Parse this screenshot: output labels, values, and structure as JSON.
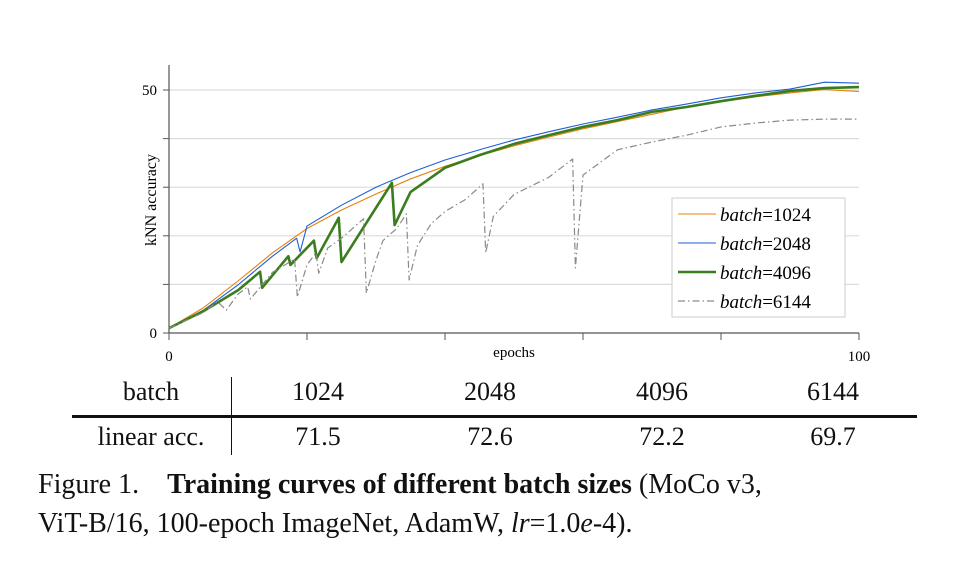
{
  "chart_data": {
    "type": "line",
    "xlabel": "epochs",
    "ylabel": "kNN accuracy",
    "xlim": [
      0,
      100
    ],
    "ylim": [
      0,
      55
    ],
    "x_tick_labels": [
      "0",
      "100"
    ],
    "x_ticks": [
      0,
      20,
      40,
      60,
      80,
      100
    ],
    "y_tick_labels": [
      "0",
      "50"
    ],
    "y_ticks": [
      0,
      10,
      20,
      30,
      40,
      50
    ],
    "grid": "horizontal",
    "legend_placement": "lower-right",
    "series": [
      {
        "name": "batch=1024",
        "color": "#e8820c",
        "style": "solid-thin",
        "x": [
          0,
          5,
          10,
          15,
          20,
          25,
          30,
          35,
          40,
          45,
          50,
          55,
          60,
          65,
          70,
          75,
          80,
          85,
          90,
          95,
          100
        ],
        "y": [
          1,
          5.2,
          10.7,
          16.5,
          21.5,
          25.3,
          28.6,
          31.7,
          34.3,
          36.5,
          38.5,
          40.3,
          42,
          43.5,
          45,
          46.5,
          47.6,
          48.6,
          49.4,
          50.1,
          49.7
        ]
      },
      {
        "name": "batch=2048",
        "color": "#1f5fd6",
        "style": "solid-thin",
        "x": [
          0,
          5,
          10,
          15,
          18.5,
          19,
          20,
          25,
          30,
          35,
          40,
          45,
          50,
          55,
          60,
          65,
          70,
          75,
          80,
          85,
          90,
          95,
          100
        ],
        "y": [
          1,
          4.7,
          9.9,
          15.8,
          19.5,
          16.7,
          22,
          26.3,
          30,
          33,
          35.6,
          37.7,
          39.7,
          41.4,
          43,
          44.4,
          45.9,
          47.1,
          48.4,
          49.4,
          50.2,
          51.6,
          51.4
        ]
      },
      {
        "name": "batch=4096",
        "color": "#3a7d1e",
        "style": "solid-thick",
        "x": [
          0,
          5,
          10,
          13.2,
          13.5,
          17.3,
          17.6,
          21,
          21.4,
          24.6,
          25,
          32.3,
          32.7,
          35,
          40,
          45,
          50,
          55,
          60,
          65,
          70,
          75,
          80,
          85,
          90,
          95,
          100
        ],
        "y": [
          1,
          4.5,
          8.8,
          12.6,
          9.3,
          15.8,
          14,
          19,
          15.4,
          23.7,
          14.6,
          30.9,
          22.2,
          29,
          34,
          36.6,
          38.9,
          40.7,
          42.4,
          43.8,
          45.5,
          46.5,
          47.7,
          48.8,
          49.8,
          50.4,
          50.6
        ]
      },
      {
        "name": "batch=6144",
        "color": "#8a8a8a",
        "style": "dash-dot",
        "x": [
          0,
          5,
          7,
          8.3,
          10,
          11.4,
          11.8,
          15,
          18.2,
          18.6,
          20,
          21.3,
          21.7,
          23,
          25,
          28.2,
          28.6,
          30,
          31,
          33,
          34.4,
          34.8,
          36,
          38,
          40,
          43,
          45.5,
          45.9,
          47,
          50,
          55,
          58.5,
          58.9,
          60,
          65,
          70,
          75,
          80,
          85,
          90,
          95,
          100
        ],
        "y": [
          1,
          4.2,
          6.5,
          4.7,
          8,
          9.5,
          7,
          12.5,
          15.2,
          7.4,
          14,
          16.5,
          12.3,
          17.5,
          19.5,
          23.5,
          8.2,
          15,
          19,
          21.5,
          24.5,
          10.9,
          18,
          22.5,
          25,
          27.5,
          30.7,
          16.5,
          24,
          28.5,
          32,
          35.8,
          13.4,
          32.5,
          37.7,
          39.3,
          40.7,
          42.4,
          43.2,
          43.8,
          44,
          44
        ]
      }
    ]
  },
  "table": {
    "headers": [
      "batch",
      "1024",
      "2048",
      "4096",
      "6144"
    ],
    "rows": [
      [
        "linear acc.",
        "71.5",
        "72.6",
        "72.2",
        "69.7"
      ]
    ]
  },
  "caption": {
    "label": "Figure 1.",
    "title": "Training curves of different batch sizes",
    "line1_rest": "(MoCo v3,",
    "line2_a": "ViT-B/16, 100-epoch ImageNet, AdamW, ",
    "line2_lr": "lr",
    "line2_b": "=1.0",
    "line2_e": "e",
    "line2_c": "-4)."
  }
}
